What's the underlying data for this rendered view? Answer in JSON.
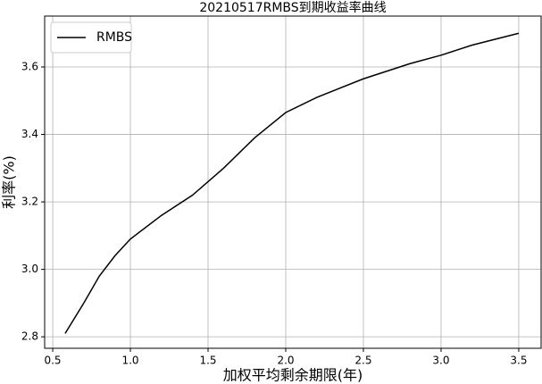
{
  "chart_data": {
    "type": "line",
    "title": "20210517RMBS到期收益率曲线",
    "xlabel": "加权平均剩余期限(年)",
    "ylabel": "利率(%)",
    "x": [
      0.58,
      0.7,
      0.8,
      0.9,
      1.0,
      1.2,
      1.4,
      1.6,
      1.8,
      2.0,
      2.2,
      2.5,
      2.8,
      3.0,
      3.2,
      3.5
    ],
    "series": [
      {
        "name": "RMBS",
        "color": "#000000",
        "values": [
          2.81,
          2.9,
          2.98,
          3.04,
          3.09,
          3.16,
          3.22,
          3.3,
          3.39,
          3.465,
          3.51,
          3.565,
          3.61,
          3.635,
          3.665,
          3.7
        ]
      }
    ],
    "xlim": [
      0.448,
      3.644
    ],
    "xticks": [
      0.5,
      {
        "value": 1,
        "label": "1.0"
      },
      1.5,
      {
        "value": 2,
        "label": "2.0"
      },
      2.5,
      {
        "value": 3,
        "label": "3.0"
      },
      3.5
    ],
    "ylim": [
      2.766,
      3.751
    ],
    "yticks": [
      2.8,
      {
        "value": 3,
        "label": "3.0"
      },
      3.2,
      3.4,
      3.6
    ],
    "grid": true,
    "legend": "upper left"
  }
}
